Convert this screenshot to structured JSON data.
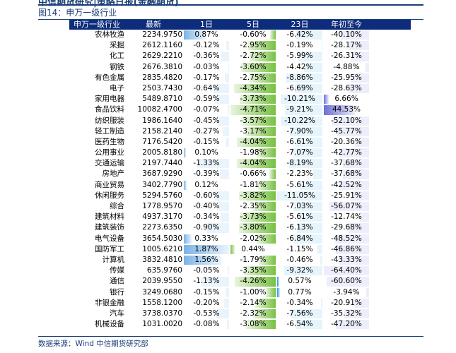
{
  "page": {
    "cut_header": "中信期货研究|策略日报(金融期货)",
    "figure_caption": "图14：申万一级行业",
    "source": "数据来源：Wind    中信期货研究部"
  },
  "table": {
    "headers": [
      "申万一级行业",
      "最新",
      "1日",
      "5日",
      "23日",
      "年初至今"
    ],
    "rows": [
      {
        "name": "农林牧渔",
        "close": "2234.9750",
        "d1": "0.87%",
        "d5": "-0.60%",
        "d23": "-6.42%",
        "ytd": "-40.10%"
      },
      {
        "name": "采掘",
        "close": "2612.1160",
        "d1": "-0.12%",
        "d5": "-2.95%",
        "d23": "-0.19%",
        "ytd": "-28.17%"
      },
      {
        "name": "化工",
        "close": "2629.2210",
        "d1": "-0.36%",
        "d5": "-2.72%",
        "d23": "-5.99%",
        "ytd": "-26.31%"
      },
      {
        "name": "钢铁",
        "close": "2676.3810",
        "d1": "-0.03%",
        "d5": "-3.60%",
        "d23": "-4.42%",
        "ytd": "-4.88%"
      },
      {
        "name": "有色金属",
        "close": "2835.4820",
        "d1": "-0.17%",
        "d5": "-2.75%",
        "d23": "-8.86%",
        "ytd": "-25.95%"
      },
      {
        "name": "电子",
        "close": "2503.7430",
        "d1": "-0.64%",
        "d5": "-4.34%",
        "d23": "-6.69%",
        "ytd": "-28.63%"
      },
      {
        "name": "家用电器",
        "close": "5489.8710",
        "d1": "-0.59%",
        "d5": "-3.73%",
        "d23": "-10.21%",
        "ytd": "6.66%"
      },
      {
        "name": "食品饮料",
        "close": "10082.4700",
        "d1": "-0.07%",
        "d5": "-4.71%",
        "d23": "-9.21%",
        "ytd": "44.53%"
      },
      {
        "name": "纺织服装",
        "close": "1986.1640",
        "d1": "-0.45%",
        "d5": "-3.57%",
        "d23": "-10.22%",
        "ytd": "-52.10%"
      },
      {
        "name": "轻工制造",
        "close": "2158.2140",
        "d1": "-0.27%",
        "d5": "-3.17%",
        "d23": "-7.90%",
        "ytd": "-45.77%"
      },
      {
        "name": "医药生物",
        "close": "7176.5420",
        "d1": "-0.15%",
        "d5": "-4.04%",
        "d23": "-6.61%",
        "ytd": "-20.36%"
      },
      {
        "name": "公用事业",
        "close": "2005.8180",
        "d1": "0.10%",
        "d5": "-1.98%",
        "d23": "-7.07%",
        "ytd": "-42.77%"
      },
      {
        "name": "交通运输",
        "close": "2197.7440",
        "d1": "-1.33%",
        "d5": "-4.04%",
        "d23": "-8.19%",
        "ytd": "-37.68%"
      },
      {
        "name": "房地产",
        "close": "3687.9290",
        "d1": "-0.39%",
        "d5": "-0.66%",
        "d23": "-2.23%",
        "ytd": "-37.68%"
      },
      {
        "name": "商业贸易",
        "close": "3402.7790",
        "d1": "0.12%",
        "d5": "-1.81%",
        "d23": "-5.61%",
        "ytd": "-42.52%"
      },
      {
        "name": "休闲服务",
        "close": "5294.5760",
        "d1": "-0.60%",
        "d5": "-3.82%",
        "d23": "-11.05%",
        "ytd": "-25.91%"
      },
      {
        "name": "综合",
        "close": "1778.9570",
        "d1": "-0.40%",
        "d5": "-2.35%",
        "d23": "-7.03%",
        "ytd": "-56.07%"
      },
      {
        "name": "建筑材料",
        "close": "4937.3170",
        "d1": "-0.34%",
        "d5": "-3.73%",
        "d23": "-5.61%",
        "ytd": "-12.74%"
      },
      {
        "name": "建筑装饰",
        "close": "2273.6350",
        "d1": "-0.90%",
        "d5": "-3.80%",
        "d23": "-6.13%",
        "ytd": "-29.68%"
      },
      {
        "name": "电气设备",
        "close": "3654.5030",
        "d1": "0.33%",
        "d5": "-2.02%",
        "d23": "-6.84%",
        "ytd": "-48.52%"
      },
      {
        "name": "国防军工",
        "close": "1005.6210",
        "d1": "1.87%",
        "d5": "0.44%",
        "d23": "-1.15%",
        "ytd": "-46.86%"
      },
      {
        "name": "计算机",
        "close": "3832.4810",
        "d1": "1.56%",
        "d5": "-1.79%",
        "d23": "-0.46%",
        "ytd": "-43.33%"
      },
      {
        "name": "传媒",
        "close": "635.9760",
        "d1": "-0.05%",
        "d5": "-3.35%",
        "d23": "-9.32%",
        "ytd": "-64.40%"
      },
      {
        "name": "通信",
        "close": "2039.9550",
        "d1": "-1.13%",
        "d5": "-4.26%",
        "d23": "0.57%",
        "ytd": "-60.60%"
      },
      {
        "name": "银行",
        "close": "3249.0680",
        "d1": "-0.15%",
        "d5": "-1.00%",
        "d23": "0.77%",
        "ytd": "-3.94%"
      },
      {
        "name": "非银金融",
        "close": "1558.1200",
        "d1": "-0.20%",
        "d5": "-2.14%",
        "d23": "-0.34%",
        "ytd": "-20.91%"
      },
      {
        "name": "汽车",
        "close": "3738.0370",
        "d1": "-0.53%",
        "d5": "-2.32%",
        "d23": "-7.56%",
        "ytd": "-35.32%"
      },
      {
        "name": "机械设备",
        "close": "1031.0020",
        "d1": "-0.08%",
        "d5": "-3.08%",
        "d23": "-6.54%",
        "ytd": "-47.20%"
      }
    ]
  },
  "bar_scale": {
    "d1": 1.87,
    "d5": 4.71,
    "d23": 11.05,
    "ytd": 64.4
  }
}
